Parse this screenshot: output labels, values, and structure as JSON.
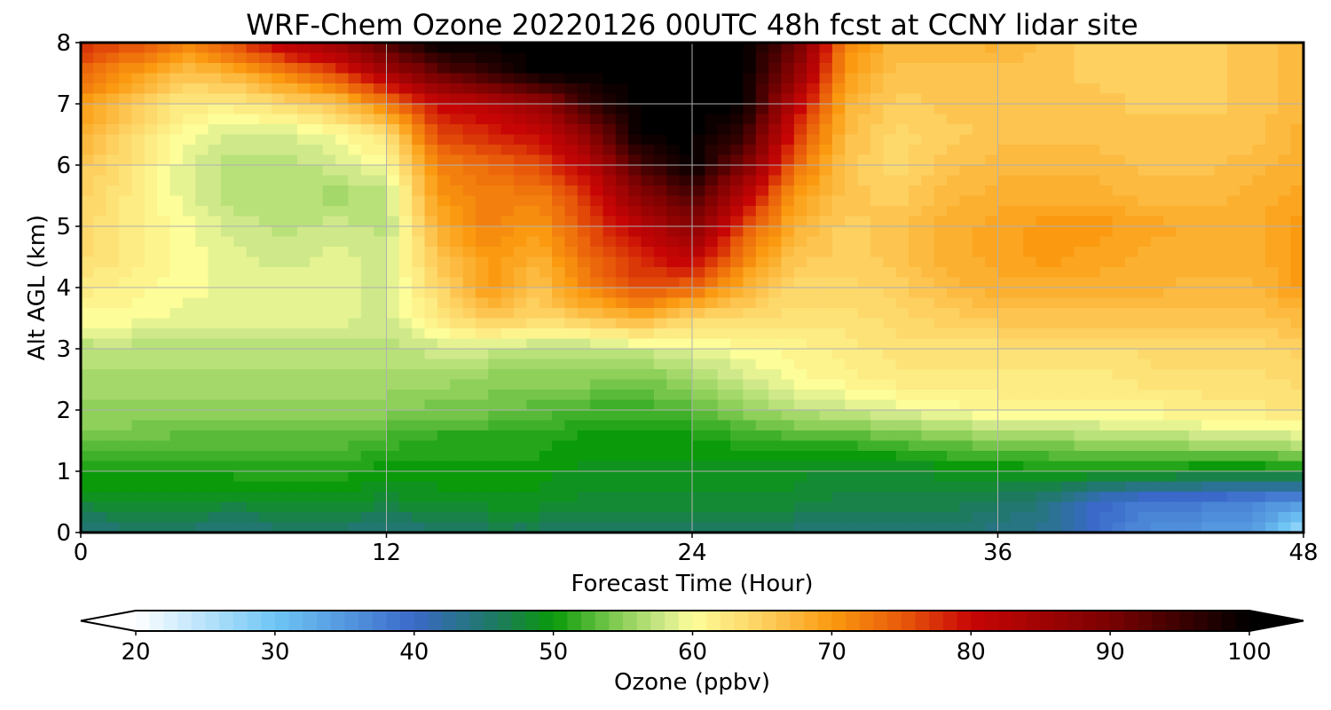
{
  "chart_data": {
    "type": "heatmap",
    "title": "WRF-Chem Ozone  20220126 00UTC 48h fcst at CCNY lidar site",
    "xlabel": "Forecast Time (Hour)",
    "ylabel": "Alt AGL (km)",
    "xlim": [
      0,
      48
    ],
    "ylim": [
      0,
      8
    ],
    "xticks": [
      0,
      12,
      24,
      36,
      48
    ],
    "yticks": [
      0,
      1,
      2,
      3,
      4,
      5,
      6,
      7,
      8
    ],
    "grid": true,
    "x": [
      0,
      2,
      4,
      6,
      8,
      10,
      12,
      14,
      16,
      18,
      20,
      22,
      24,
      26,
      28,
      30,
      32,
      34,
      36,
      38,
      40,
      42,
      44,
      46,
      48
    ],
    "y": [
      0,
      0.5,
      1,
      1.5,
      2,
      2.5,
      3,
      3.5,
      4,
      4.5,
      5,
      5.5,
      6,
      6.5,
      7,
      7.5,
      8
    ],
    "z": [
      [
        44,
        45,
        45,
        44,
        45,
        45,
        44,
        45,
        46,
        46,
        46,
        46,
        46,
        45,
        45,
        45,
        45,
        45,
        44,
        43,
        39,
        36,
        35,
        34,
        26
      ],
      [
        48,
        49,
        49,
        48,
        49,
        49,
        48,
        49,
        49,
        49,
        48,
        48,
        48,
        48,
        48,
        47,
        47,
        47,
        46,
        44,
        40,
        38,
        38,
        37,
        35
      ],
      [
        51,
        50,
        50,
        51,
        51,
        51,
        50,
        50,
        50,
        50,
        49,
        49,
        49,
        49,
        49,
        48,
        48,
        49,
        49,
        50,
        50,
        50,
        49,
        49,
        50
      ],
      [
        54,
        54,
        53,
        53,
        53,
        53,
        52,
        51,
        51,
        51,
        50,
        50,
        50,
        51,
        52,
        52,
        53,
        54,
        55,
        55,
        56,
        56,
        57,
        57,
        58
      ],
      [
        55,
        55,
        55,
        55,
        55,
        55,
        55,
        54,
        54,
        53,
        52,
        52,
        53,
        55,
        57,
        58,
        59,
        60,
        61,
        61,
        61,
        61,
        62,
        62,
        63
      ],
      [
        56,
        56,
        56,
        56,
        56,
        56,
        56,
        56,
        55,
        55,
        55,
        54,
        56,
        58,
        60,
        61,
        62,
        62,
        62,
        62,
        62,
        63,
        63,
        63,
        64
      ],
      [
        57,
        57,
        57,
        57,
        57,
        57,
        57,
        58,
        58,
        57,
        57,
        58,
        59,
        60,
        61,
        62,
        63,
        63,
        63,
        63,
        63,
        64,
        64,
        64,
        65
      ],
      [
        60,
        60,
        59,
        59,
        59,
        59,
        58,
        62,
        66,
        64,
        66,
        68,
        64,
        64,
        63,
        63,
        64,
        65,
        66,
        66,
        66,
        66,
        66,
        66,
        67
      ],
      [
        62,
        61,
        60,
        59,
        59,
        59,
        58,
        64,
        70,
        66,
        72,
        76,
        74,
        68,
        64,
        64,
        65,
        67,
        68,
        68,
        68,
        68,
        67,
        67,
        70
      ],
      [
        64,
        62,
        60,
        59,
        58,
        59,
        58,
        66,
        70,
        68,
        74,
        78,
        82,
        72,
        66,
        65,
        66,
        68,
        69,
        70,
        69,
        68,
        68,
        68,
        70
      ],
      [
        64,
        62,
        60,
        58,
        57,
        58,
        57,
        68,
        72,
        70,
        76,
        82,
        88,
        76,
        68,
        65,
        66,
        68,
        69,
        70,
        70,
        69,
        68,
        68,
        70
      ],
      [
        65,
        62,
        59,
        57,
        57,
        56,
        57,
        70,
        72,
        72,
        78,
        88,
        94,
        82,
        70,
        66,
        65,
        67,
        68,
        68,
        68,
        67,
        67,
        68,
        69
      ],
      [
        66,
        63,
        59,
        57,
        57,
        58,
        60,
        72,
        74,
        76,
        82,
        94,
        100,
        90,
        74,
        66,
        64,
        66,
        67,
        67,
        67,
        66,
        66,
        67,
        68
      ],
      [
        68,
        64,
        60,
        58,
        58,
        60,
        63,
        76,
        78,
        80,
        88,
        100,
        100,
        96,
        78,
        67,
        64,
        65,
        66,
        66,
        66,
        66,
        66,
        66,
        68
      ],
      [
        70,
        66,
        62,
        62,
        64,
        66,
        72,
        80,
        82,
        86,
        96,
        100,
        100,
        100,
        82,
        68,
        65,
        66,
        66,
        66,
        66,
        65,
        65,
        66,
        67
      ],
      [
        74,
        70,
        66,
        68,
        72,
        76,
        84,
        92,
        96,
        100,
        100,
        100,
        100,
        100,
        88,
        70,
        66,
        66,
        66,
        66,
        65,
        65,
        65,
        66,
        67
      ],
      [
        78,
        76,
        72,
        76,
        82,
        86,
        94,
        100,
        100,
        100,
        100,
        100,
        100,
        100,
        92,
        72,
        67,
        67,
        68,
        66,
        65,
        65,
        65,
        66,
        67
      ]
    ],
    "colorbar": {
      "label": "Ozone  (ppbv)",
      "ticks": [
        20,
        30,
        40,
        50,
        60,
        70,
        80,
        90,
        100
      ],
      "min": 20,
      "max": 100,
      "extend": "both",
      "stops": [
        [
          20,
          "#ffffff"
        ],
        [
          30,
          "#6fc6f5"
        ],
        [
          40,
          "#3a69c9"
        ],
        [
          46,
          "#1d7a5e"
        ],
        [
          50,
          "#0a9a0a"
        ],
        [
          55,
          "#8ed05a"
        ],
        [
          58,
          "#cfe98a"
        ],
        [
          60,
          "#fdfd9a"
        ],
        [
          65,
          "#fdd060"
        ],
        [
          70,
          "#fb9a10"
        ],
        [
          75,
          "#e85a0a"
        ],
        [
          80,
          "#c80505"
        ],
        [
          90,
          "#7a0202"
        ],
        [
          100,
          "#000000"
        ]
      ]
    }
  }
}
